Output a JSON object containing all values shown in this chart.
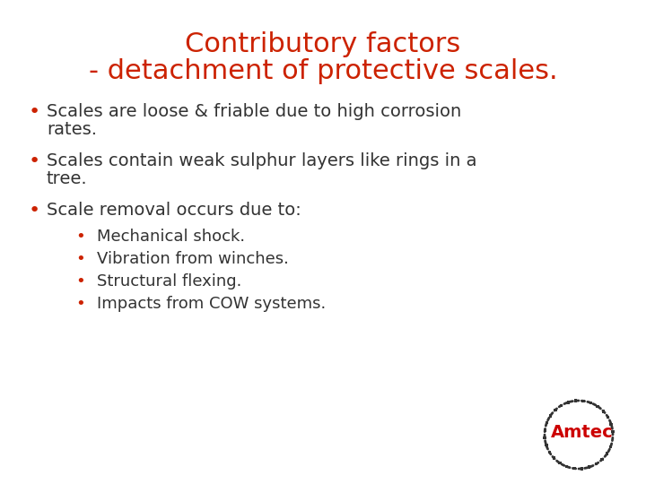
{
  "title_line1": "Contributory factors",
  "title_line2": "- detachment of protective scales.",
  "title_color": "#cc2200",
  "background_color": "#ffffff",
  "text_color": "#333333",
  "bullet_color": "#cc2200",
  "bullet1_line1": "Scales are loose & friable due to high corrosion",
  "bullet1_line2": "rates.",
  "bullet2_line1": "Scales contain weak sulphur layers like rings in a",
  "bullet2_line2": "tree.",
  "bullet3": "Scale removal occurs due to:",
  "sub_bullets": [
    "Mechanical shock.",
    "Vibration from winches.",
    "Structural flexing.",
    "Impacts from COW systems."
  ],
  "logo_text": "Amtec",
  "logo_color": "#cc0000",
  "title_fontsize": 22,
  "body_fontsize": 14,
  "sub_fontsize": 13
}
